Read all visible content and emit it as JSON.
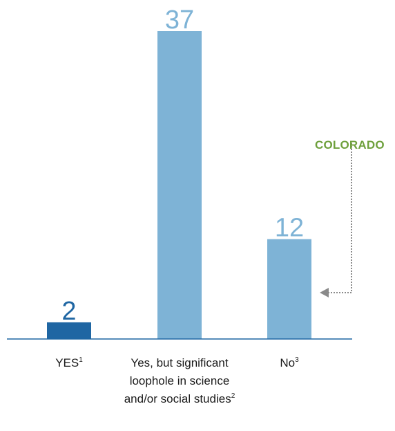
{
  "chart_data": {
    "type": "bar",
    "categories": [
      {
        "text": "YES",
        "sup": "1"
      },
      {
        "text": "Yes, but significant loophole in science and/or social studies",
        "sup": "2"
      },
      {
        "text": "No",
        "sup": "3"
      }
    ],
    "values": [
      2,
      37,
      12
    ],
    "bar_colors": [
      "#1f66a3",
      "#7eb3d6",
      "#7eb3d6"
    ],
    "value_label_colors": [
      "#1f66a3",
      "#7eb3d6",
      "#7eb3d6"
    ],
    "ylim": [
      0,
      37
    ],
    "grid": false,
    "annotation": {
      "text": "COLORADO",
      "color": "#6ea03c",
      "target_category": "No"
    },
    "axis_color": "#1f66a3",
    "arrow_color": "#8a8a8a"
  }
}
